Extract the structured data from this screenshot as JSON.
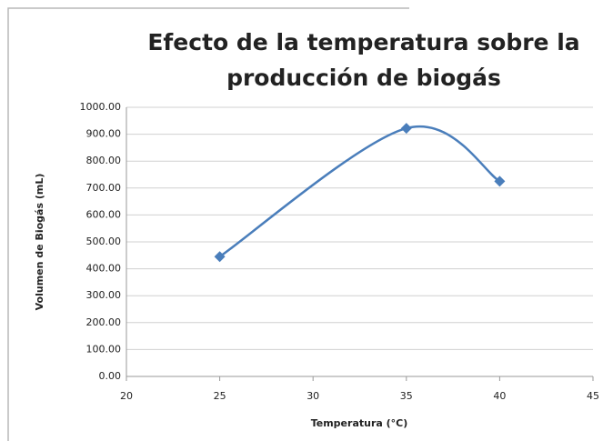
{
  "chart_data": {
    "type": "scatter-smooth",
    "title": [
      "Efecto de la temperatura sobre la",
      "producción de biogás"
    ],
    "x_label": "Temperatura (°C)",
    "y_label": "Volumen de Biogás (mL)",
    "series": [
      {
        "name": "Volumen de Biogás",
        "color": "#4a7ebb",
        "x": [
          25,
          35,
          40
        ],
        "values": [
          445,
          922,
          725
        ]
      }
    ],
    "xlim": [
      20,
      45
    ],
    "xticks": [
      20,
      25,
      30,
      35,
      40,
      45
    ],
    "ylim": [
      0,
      1000
    ],
    "yticks": [
      {
        "value": 0,
        "label": "0.00"
      },
      {
        "value": 100,
        "label": "100.00"
      },
      {
        "value": 200,
        "label": "200.00"
      },
      {
        "value": 300,
        "label": "300.00"
      },
      {
        "value": 400,
        "label": "400.00"
      },
      {
        "value": 500,
        "label": "500.00"
      },
      {
        "value": 600,
        "label": "600.00"
      },
      {
        "value": 700,
        "label": "700.00"
      },
      {
        "value": 800,
        "label": "800.00"
      },
      {
        "value": 900,
        "label": "900.00"
      },
      {
        "value": 1000,
        "label": "1000.00"
      }
    ],
    "grid": true
  }
}
